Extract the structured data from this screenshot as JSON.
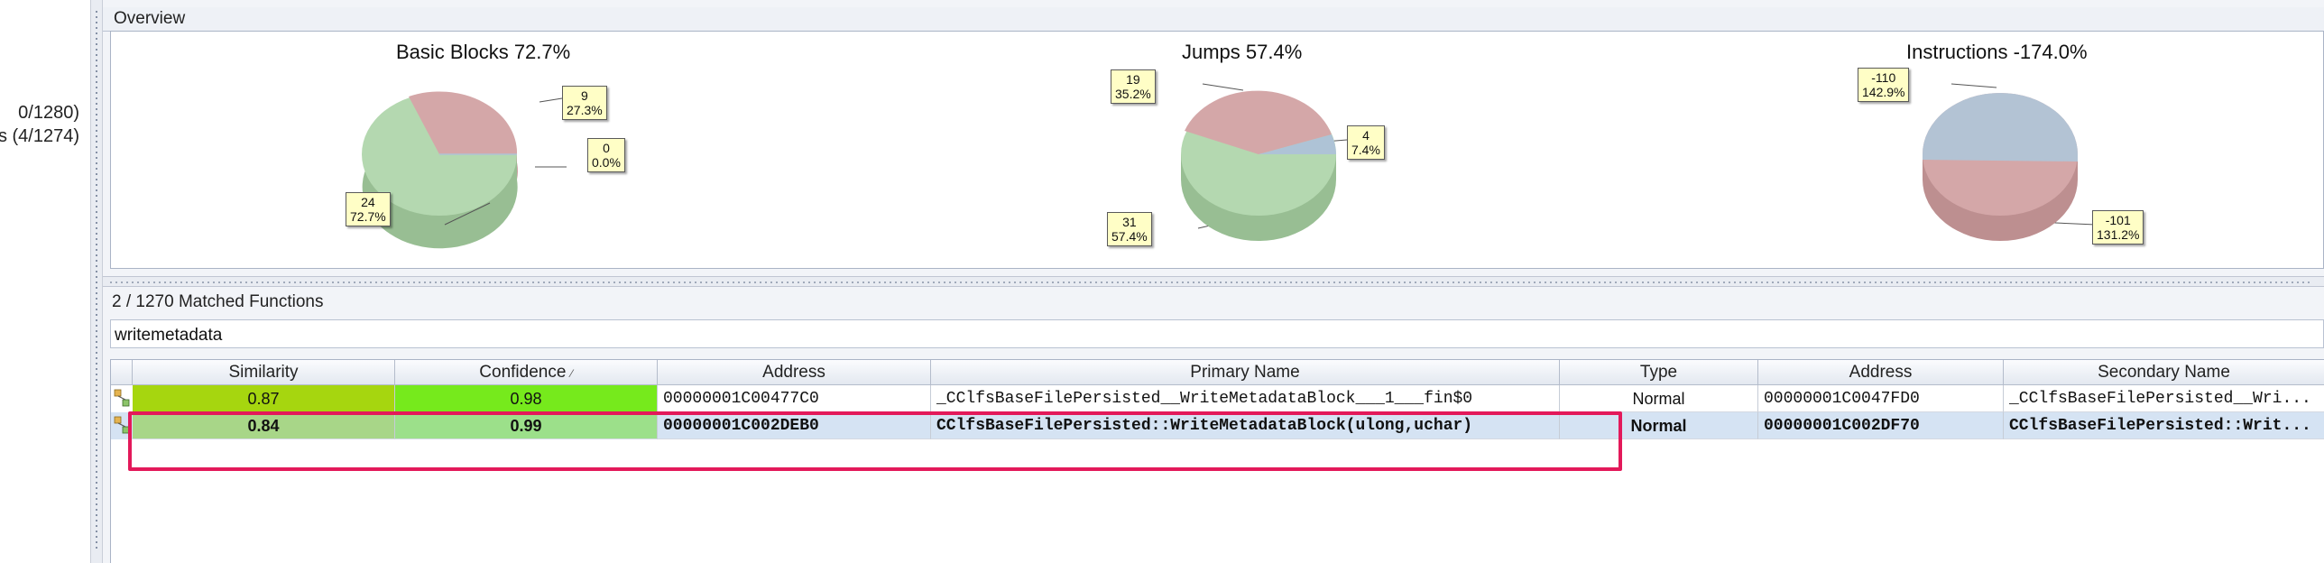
{
  "left_panel": {
    "counts": [
      "0/1280)",
      "s (4/1274)"
    ]
  },
  "overview": {
    "header": "Overview",
    "charts": [
      {
        "title": "Basic Blocks 72.7%",
        "slices": [
          {
            "label_count": "9",
            "label_pct": "27.3%",
            "value": 27.3,
            "color": "#d4a7a8"
          },
          {
            "label_count": "0",
            "label_pct": "0.0%",
            "value": 0.0,
            "color": "#aec3d6"
          },
          {
            "label_count": "24",
            "label_pct": "72.7%",
            "value": 72.7,
            "color": "#b4d8b0"
          }
        ]
      },
      {
        "title": "Jumps 57.4%",
        "slices": [
          {
            "label_count": "19",
            "label_pct": "35.2%",
            "value": 35.2,
            "color": "#d4a7a8"
          },
          {
            "label_count": "4",
            "label_pct": "7.4%",
            "value": 7.4,
            "color": "#aec3d6"
          },
          {
            "label_count": "31",
            "label_pct": "57.4%",
            "value": 57.4,
            "color": "#b4d8b0"
          }
        ]
      },
      {
        "title": "Instructions -174.0%",
        "slices": [
          {
            "label_count": "-110",
            "label_pct": "142.9%",
            "value": 142.9,
            "color": "#b3c3d4"
          },
          {
            "label_count": "-101",
            "label_pct": "131.2%",
            "value": 131.2,
            "color": "#d4a7a8"
          }
        ]
      }
    ]
  },
  "matched": {
    "header": "2 / 1270 Matched Functions",
    "filter_value": "writemetadata"
  },
  "table": {
    "columns": [
      "Similarity",
      "Confidence",
      "Address",
      "Primary Name",
      "Type",
      "Address",
      "Secondary Name"
    ],
    "sort_indicator": "⁄",
    "rows": [
      {
        "similarity": "0.87",
        "confidence": "0.98",
        "primary_address": "00000001C00477C0",
        "primary_name": "_CClfsBaseFilePersisted__WriteMetadataBlock___1___fin$0",
        "type": "Normal",
        "secondary_address": "00000001C0047FD0",
        "secondary_name": "_CClfsBaseFilePersisted__Wri...",
        "sim_color": "#a6d60f",
        "conf_color": "#76ea1c"
      },
      {
        "similarity": "0.84",
        "confidence": "0.99",
        "primary_address": "00000001C002DEB0",
        "primary_name": "CClfsBaseFilePersisted::WriteMetadataBlock(ulong,uchar)",
        "type": "Normal",
        "secondary_address": "00000001C002DF70",
        "secondary_name": "CClfsBaseFilePersisted::Writ...",
        "sim_color": "#a8d688",
        "conf_color": "#9ce08a"
      }
    ]
  },
  "colors": {
    "highlight": "#e3195a",
    "selected_row": "#d5e3f3"
  }
}
